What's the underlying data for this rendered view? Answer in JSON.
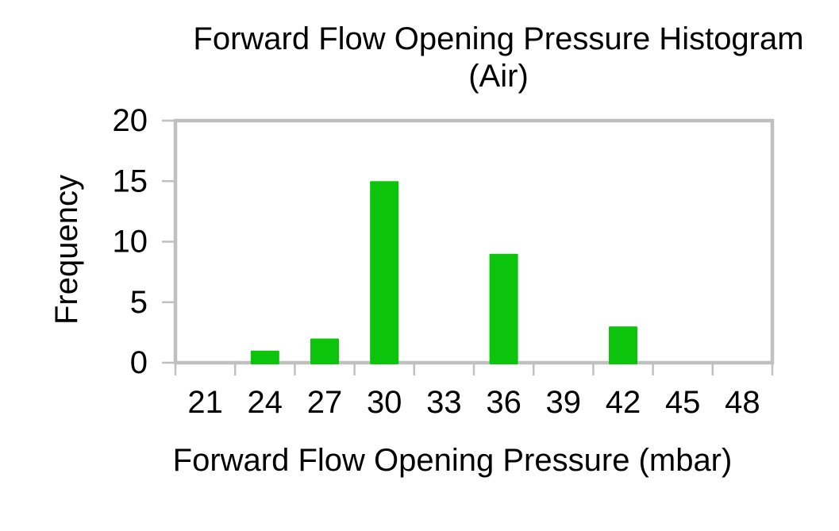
{
  "chart": {
    "title_lines": [
      "Forward Flow Opening Pressure Histogram",
      "(Air)"
    ],
    "x_axis_title": "Forward Flow Opening Pressure (mbar)",
    "y_axis_title": "Frequency"
  },
  "chart_data": {
    "type": "bar",
    "title": "Forward Flow Opening Pressure Histogram (Air)",
    "xlabel": "Forward Flow Opening Pressure (mbar)",
    "ylabel": "Frequency",
    "categories": [
      "21",
      "24",
      "27",
      "30",
      "33",
      "36",
      "39",
      "42",
      "45",
      "48"
    ],
    "values": [
      0,
      1,
      2,
      15,
      0,
      9,
      0,
      3,
      0,
      0
    ],
    "ylim": [
      0,
      20
    ],
    "yticks": [
      0,
      5,
      10,
      15,
      20
    ],
    "grid": false,
    "legend_position": "none",
    "bar_color": "#0CC40C",
    "axis_frame_color": "#C0C0C0",
    "text_color": "#000000",
    "background_color": "#FFFFFF"
  }
}
